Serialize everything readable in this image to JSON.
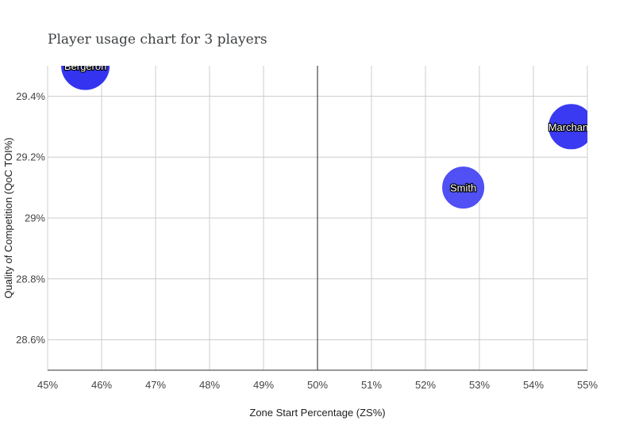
{
  "chart_data": {
    "type": "scatter",
    "title": "Player usage chart for 3 players",
    "xlabel": "Zone Start Percentage (ZS%)",
    "ylabel": "Quality of Competition (QoC TOI%)",
    "xlim": [
      45,
      55
    ],
    "ylim": [
      28.5,
      29.5
    ],
    "x_ticks": [
      45,
      46,
      47,
      48,
      49,
      50,
      51,
      52,
      53,
      54,
      55
    ],
    "x_tick_labels": [
      "45%",
      "46%",
      "47%",
      "48%",
      "49%",
      "50%",
      "51%",
      "52%",
      "53%",
      "54%",
      "55%"
    ],
    "y_ticks": [
      28.6,
      28.8,
      29.0,
      29.2,
      29.4
    ],
    "y_tick_labels": [
      "28.6%",
      "28.8%",
      "29%",
      "29.2%",
      "29.4%"
    ],
    "reference_line_x": 50,
    "grid": true,
    "points": [
      {
        "label": "Bergeron",
        "x": 45.7,
        "y": 29.5,
        "color": "#3434f0"
      },
      {
        "label": "Smith",
        "x": 52.7,
        "y": 29.1,
        "color": "#5050f5"
      },
      {
        "label": "Marchand",
        "x": 54.7,
        "y": 29.3,
        "color": "#3a3af2"
      }
    ]
  }
}
